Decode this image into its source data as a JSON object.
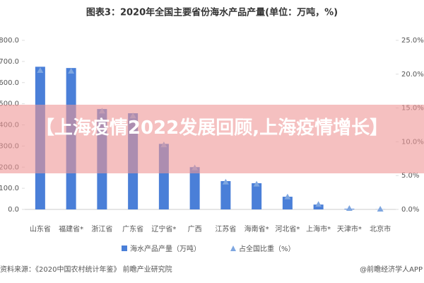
{
  "chart_data": {
    "type": "bar",
    "title": "图表3：2020年全国主要省份海水产品产量(单位：万吨，%)",
    "categories": [
      "山东省",
      "福建省*",
      "浙江省",
      "广东省",
      "辽宁省*",
      "广西",
      "江苏省",
      "海南省*",
      "河北省*",
      "上海市*",
      "天津市*",
      "北京市"
    ],
    "series": [
      {
        "name": "海水产品产量（万吨）",
        "color": "#4a7fd8",
        "values": [
          675,
          669,
          475,
          455,
          310,
          200,
          134,
          124,
          60,
          23,
          3,
          0.5
        ]
      },
      {
        "name": "占全国比重（%）",
        "color": "#7ea6e0",
        "axis": "y2",
        "marker": "triangle",
        "values": [
          20.5,
          20.4,
          14.5,
          13.8,
          9.5,
          6.1,
          4.0,
          3.7,
          1.8,
          0.7,
          0.1,
          0.0
        ]
      }
    ],
    "ylim": [
      0,
      800
    ],
    "yticks": [
      {
        "value": 0,
        "label": "0.0"
      },
      {
        "value": 100,
        "label": "100.0"
      },
      {
        "value": 200,
        "label": "200.0"
      },
      {
        "value": 300,
        "label": "300.0"
      },
      {
        "value": 400,
        "label": "400.0"
      },
      {
        "value": 500,
        "label": "500.0"
      },
      {
        "value": 600,
        "label": "600.0"
      },
      {
        "value": 700,
        "label": "700.0"
      },
      {
        "value": 800,
        "label": "800.0"
      }
    ],
    "y2lim": [
      0,
      25
    ],
    "y2ticks": [
      {
        "value": 0,
        "label": "0.0%"
      },
      {
        "value": 5,
        "label": "5.0%"
      },
      {
        "value": 10,
        "label": "10.0%"
      },
      {
        "value": 15,
        "label": "15.0%"
      },
      {
        "value": 20,
        "label": "20.0%"
      },
      {
        "value": 25,
        "label": "25.0%"
      }
    ],
    "source": "资料来源：《2020中国农村统计年鉴》 前瞻产业研究院",
    "credit": "@前瞻经济学人APP"
  },
  "overlay_text": "【上海疫情2022发展回顾,上海疫情增长】"
}
